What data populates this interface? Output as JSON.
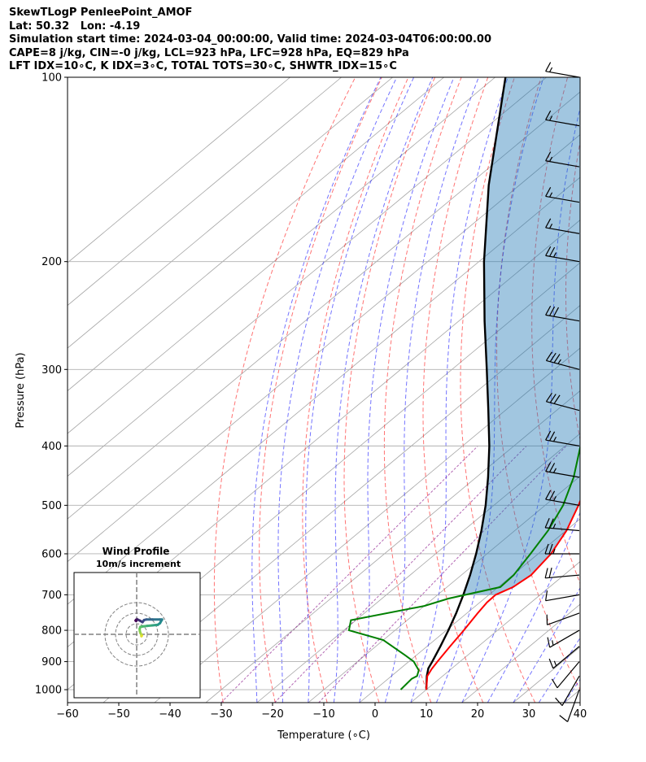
{
  "header": {
    "line1": "SkewTLogP PenleePoint_AMOF",
    "line2": "Lat: 50.32   Lon: -4.19",
    "line3": "Simulation start time: 2024-03-04_00:00:00, Valid time: 2024-03-04T06:00:00.00",
    "line4": "CAPE=8 j/kg, CIN=-0 j/kg, LCL=923 hPa, LFC=928 hPa, EQ=829 hPa",
    "line5": "LFT IDX=10∘C, K IDX=3∘C, TOTAL TOTS=30∘C, SHWTR_IDX=15∘C"
  },
  "chart_data": [
    {
      "type": "line",
      "ylabel": "Pressure (hPa)",
      "xlabel": "Temperature (∘C)",
      "ylim": [
        1050,
        100
      ],
      "xlim": [
        -60,
        40
      ],
      "y_scale": "log",
      "x_ticks": [
        -60,
        -50,
        -40,
        -30,
        -20,
        -10,
        0,
        10,
        20,
        30,
        40
      ],
      "y_ticks": [
        1000,
        900,
        800,
        700,
        600,
        500,
        400,
        300,
        200,
        100
      ],
      "y_tick_labels": [
        "1000",
        "900",
        "800",
        "700",
        "600",
        "500",
        "400",
        "300",
        "200",
        "100"
      ],
      "grid": true,
      "temperature": {
        "color": "#ff0000",
        "points": [
          [
            1000,
            10.0
          ],
          [
            950,
            7.0
          ],
          [
            925,
            6.2
          ],
          [
            900,
            5.6
          ],
          [
            850,
            4.5
          ],
          [
            800,
            3.4
          ],
          [
            750,
            2.1
          ],
          [
            720,
            1.4
          ],
          [
            700,
            1.3
          ],
          [
            680,
            2.9
          ],
          [
            650,
            3.6
          ],
          [
            600,
            2.5
          ],
          [
            550,
            0.1
          ],
          [
            500,
            -3.5
          ],
          [
            450,
            -7.9
          ],
          [
            400,
            -13.0
          ],
          [
            350,
            -19.5
          ],
          [
            300,
            -27.0
          ],
          [
            280,
            -30.2
          ],
          [
            260,
            -34.0
          ],
          [
            250,
            -34.0
          ],
          [
            235,
            -33.0
          ],
          [
            220,
            -34.0
          ],
          [
            200,
            -37.0
          ],
          [
            180,
            -39.0
          ],
          [
            170,
            -39.0
          ],
          [
            150,
            -40.0
          ],
          [
            130,
            -43.0
          ],
          [
            115,
            -46.0
          ],
          [
            100,
            -48.5
          ]
        ]
      },
      "dewpoint": {
        "color": "#008000",
        "points": [
          [
            1000,
            5.0
          ],
          [
            960,
            4.6
          ],
          [
            950,
            5.0
          ],
          [
            930,
            4.0
          ],
          [
            900,
            1.0
          ],
          [
            880,
            -2.0
          ],
          [
            830,
            -10.0
          ],
          [
            800,
            -19.0
          ],
          [
            770,
            -21.0
          ],
          [
            730,
            -10.0
          ],
          [
            710,
            -7.0
          ],
          [
            680,
            0.4
          ],
          [
            650,
            0.2
          ],
          [
            600,
            -1.5
          ],
          [
            550,
            -3.5
          ],
          [
            500,
            -6.5
          ],
          [
            450,
            -11.0
          ],
          [
            400,
            -17.0
          ],
          [
            350,
            -24.0
          ],
          [
            300,
            -33.0
          ],
          [
            280,
            -37.5
          ],
          [
            260,
            -41.5
          ],
          [
            240,
            -44.0
          ],
          [
            220,
            -44.0
          ],
          [
            200,
            -44.5
          ],
          [
            180,
            -48.5
          ],
          [
            170,
            -54.0
          ],
          [
            150,
            -58.0
          ],
          [
            130,
            -61.0
          ],
          [
            115,
            -63.0
          ],
          [
            100,
            -64.5
          ]
        ]
      },
      "parcel": {
        "color": "#000000",
        "points": [
          [
            1000,
            10.0
          ],
          [
            950,
            6.9
          ],
          [
            923,
            5.4
          ],
          [
            900,
            4.6
          ],
          [
            850,
            2.6
          ],
          [
            800,
            0.4
          ],
          [
            750,
            -2.1
          ],
          [
            700,
            -5.0
          ],
          [
            650,
            -8.3
          ],
          [
            600,
            -12.1
          ],
          [
            550,
            -16.5
          ],
          [
            500,
            -21.6
          ],
          [
            450,
            -27.7
          ],
          [
            400,
            -34.8
          ],
          [
            350,
            -43.3
          ],
          [
            300,
            -53.2
          ],
          [
            250,
            -65.0
          ],
          [
            200,
            -79.0
          ],
          [
            150,
            -96.0
          ],
          [
            100,
            -118.0
          ]
        ]
      },
      "cape_fill": {
        "color": "#1f77b4"
      },
      "reference_lines": {
        "isotherms": {
          "color": "#808080"
        },
        "dry_adiabats": {
          "color": "#ff0000"
        },
        "moist_adiabats": {
          "color": "#0000ff"
        },
        "mixing_ratio": {
          "color": "#800080"
        }
      },
      "wind_barbs": {
        "units": "knots",
        "levels": [
          [
            1000,
            10,
            200
          ],
          [
            950,
            10,
            210
          ],
          [
            900,
            12,
            220
          ],
          [
            850,
            15,
            230
          ],
          [
            800,
            15,
            240
          ],
          [
            750,
            12,
            250
          ],
          [
            700,
            12,
            260
          ],
          [
            650,
            20,
            265
          ],
          [
            600,
            25,
            270
          ],
          [
            550,
            25,
            275
          ],
          [
            500,
            25,
            280
          ],
          [
            450,
            25,
            280
          ],
          [
            400,
            25,
            280
          ],
          [
            350,
            30,
            285
          ],
          [
            300,
            35,
            285
          ],
          [
            250,
            30,
            280
          ],
          [
            200,
            25,
            280
          ],
          [
            180,
            15,
            280
          ],
          [
            160,
            15,
            280
          ],
          [
            140,
            15,
            280
          ],
          [
            120,
            15,
            280
          ],
          [
            100,
            15,
            280
          ]
        ]
      }
    },
    {
      "type": "line",
      "title": "Wind Profile",
      "subtitle": "10m/s increment",
      "rings": [
        10,
        20,
        30
      ],
      "hodograph": [
        [
          5.0,
          -1.2
        ],
        [
          4.5,
          -1.8
        ],
        [
          4.2,
          0.2
        ],
        [
          3.5,
          1.2
        ],
        [
          3.0,
          3.0
        ],
        [
          2.8,
          5.2
        ],
        [
          3.5,
          7.0
        ],
        [
          6.0,
          7.5
        ],
        [
          10.0,
          8.0
        ],
        [
          15.0,
          8.5
        ],
        [
          20.0,
          9.0
        ],
        [
          22.0,
          10.5
        ],
        [
          24.0,
          14.0
        ],
        [
          22.0,
          14.0
        ],
        [
          15.0,
          14.0
        ],
        [
          9.0,
          14.0
        ],
        [
          7.0,
          13.5
        ],
        [
          5.5,
          11.5
        ],
        [
          3.0,
          13.0
        ],
        [
          0.5,
          14.2
        ],
        [
          -0.5,
          13.8
        ],
        [
          -1.0,
          13.0
        ],
        [
          -0.5,
          12.5
        ]
      ]
    }
  ]
}
